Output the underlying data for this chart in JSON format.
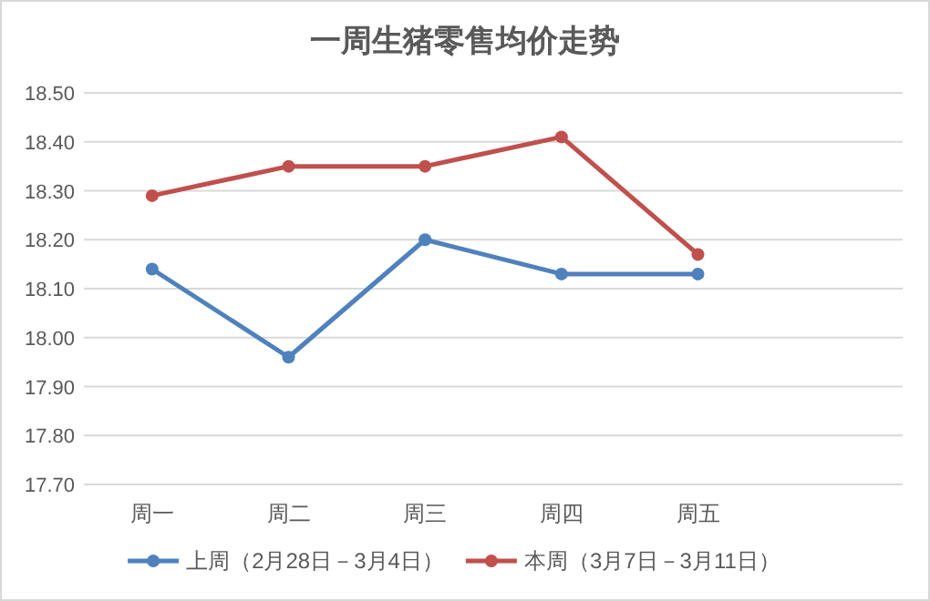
{
  "chart_data": {
    "type": "line",
    "title": "一周生猪零售均价走势",
    "categories": [
      "周一",
      "周二",
      "周三",
      "周四",
      "周五",
      null
    ],
    "series": [
      {
        "name": "上周（2月28日－3月4日）",
        "color": "#4f81bd",
        "values": [
          18.14,
          17.96,
          18.2,
          18.13,
          18.13,
          null
        ]
      },
      {
        "name": "本周（3月7日－3月11日）",
        "color": "#c0504d",
        "values": [
          18.29,
          18.35,
          18.35,
          18.41,
          18.17,
          null
        ]
      }
    ],
    "ylim": [
      17.7,
      18.5
    ],
    "yticks": [
      {
        "value": 17.7,
        "label": "17.70"
      },
      {
        "value": 17.8,
        "label": "17.80"
      },
      {
        "value": 17.9,
        "label": "17.90"
      },
      {
        "value": 18.0,
        "label": "18.00"
      },
      {
        "value": 18.1,
        "label": "18.10"
      },
      {
        "value": 18.2,
        "label": "18.20"
      },
      {
        "value": 18.3,
        "label": "18.30"
      },
      {
        "value": 18.4,
        "label": "18.40"
      },
      {
        "value": 18.5,
        "label": "18.50"
      }
    ],
    "grid": "y",
    "legend": "bottom",
    "marker": "circle",
    "line_style": "solid"
  }
}
